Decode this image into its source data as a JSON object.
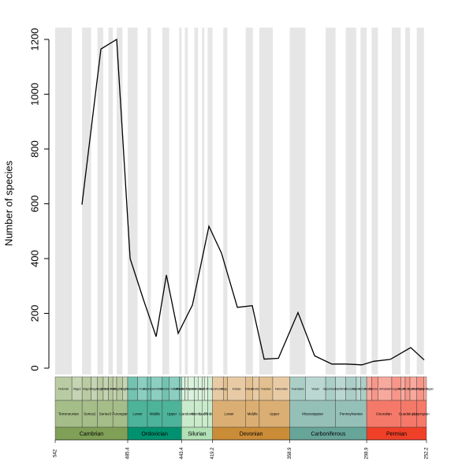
{
  "chart_data": {
    "type": "line",
    "y_label": "Number of species",
    "x": [
      521.1,
      506.3,
      494,
      483.5,
      473.1,
      463.2,
      455.2,
      446,
      434.9,
      422,
      412.2,
      399.8,
      388.2,
      378.9,
      367.8,
      352.5,
      339.5,
      326,
      314.3,
      302.6,
      293.4,
      280.5,
      264.5,
      254
    ],
    "values": [
      597,
      1165,
      1200,
      400,
      250,
      115,
      340,
      127,
      230,
      518,
      420,
      222,
      228,
      33,
      36,
      203,
      45,
      15,
      15,
      12,
      25,
      32,
      75,
      30
    ],
    "color": "#000000",
    "xlim": [
      542,
      252.2
    ],
    "xticks": [
      542,
      485.4,
      443.4,
      419.2,
      358.9,
      298.9,
      252.2
    ],
    "ylim": [
      0,
      1200
    ],
    "yticks": [
      0,
      200,
      400,
      600,
      800,
      1000,
      1200
    ],
    "band_color": "#e6e6e6",
    "timescale": {
      "systems": [
        {
          "name": "Cambrian",
          "start": 542,
          "end": 485.4,
          "color": "#7fa056"
        },
        {
          "name": "Ordovician",
          "start": 485.4,
          "end": 443.4,
          "color": "#009270"
        },
        {
          "name": "Silurian",
          "start": 443.4,
          "end": 419.2,
          "color": "#b3e1b6"
        },
        {
          "name": "Devonian",
          "start": 419.2,
          "end": 358.9,
          "color": "#cb8c37"
        },
        {
          "name": "Carboniferous",
          "start": 358.9,
          "end": 298.9,
          "color": "#67a599"
        },
        {
          "name": "Permian",
          "start": 298.9,
          "end": 252.2,
          "color": "#f04028"
        }
      ],
      "series": [
        {
          "name": "Terreneuvian",
          "start": 542,
          "end": 521
        },
        {
          "name": "Series2",
          "start": 521,
          "end": 509
        },
        {
          "name": "Series3",
          "start": 509,
          "end": 497
        },
        {
          "name": "Furongian",
          "start": 497,
          "end": 485.4
        },
        {
          "name": "Lower",
          "start": 485.4,
          "end": 470
        },
        {
          "name": "Middle",
          "start": 470,
          "end": 458.4
        },
        {
          "name": "Upper",
          "start": 458.4,
          "end": 443.4
        },
        {
          "name": "Llandovery",
          "start": 443.4,
          "end": 433.4
        },
        {
          "name": "Wenlock",
          "start": 433.4,
          "end": 427.4
        },
        {
          "name": "Ludlow",
          "start": 427.4,
          "end": 423
        },
        {
          "name": "Pridoli",
          "start": 423,
          "end": 419.2
        },
        {
          "name": "Lower",
          "start": 419.2,
          "end": 393.3
        },
        {
          "name": "Middle",
          "start": 393.3,
          "end": 382.7
        },
        {
          "name": "Upper",
          "start": 382.7,
          "end": 358.9
        },
        {
          "name": "Mississippian",
          "start": 358.9,
          "end": 323.2
        },
        {
          "name": "Pennsylvanian",
          "start": 323.2,
          "end": 298.9
        },
        {
          "name": "Cisuralian",
          "start": 298.9,
          "end": 272.3
        },
        {
          "name": "Guadalupian",
          "start": 272.3,
          "end": 259.8
        },
        {
          "name": "Lopingian",
          "start": 259.8,
          "end": 252.2
        }
      ],
      "stages": [
        {
          "name": "Fortunian",
          "start": 542,
          "end": 529
        },
        {
          "name": "Stage2",
          "start": 529,
          "end": 521
        },
        {
          "name": "Stage3",
          "start": 521,
          "end": 514
        },
        {
          "name": "Stage4",
          "start": 514,
          "end": 509
        },
        {
          "name": "Stage5",
          "start": 509,
          "end": 504.5
        },
        {
          "name": "Drumian",
          "start": 504.5,
          "end": 500.5
        },
        {
          "name": "Guzhangian",
          "start": 500.5,
          "end": 497
        },
        {
          "name": "Paibian",
          "start": 497,
          "end": 494
        },
        {
          "name": "Jiangshanian",
          "start": 494,
          "end": 489.5
        },
        {
          "name": "Stage10",
          "start": 489.5,
          "end": 485.4
        },
        {
          "name": "Tremadocian",
          "start": 485.4,
          "end": 477.7
        },
        {
          "name": "Floian",
          "start": 477.7,
          "end": 470
        },
        {
          "name": "Dapingian",
          "start": 470,
          "end": 467.3
        },
        {
          "name": "Darriwilian",
          "start": 467.3,
          "end": 458.4
        },
        {
          "name": "Sandbian",
          "start": 458.4,
          "end": 453
        },
        {
          "name": "Katian",
          "start": 453,
          "end": 445.2
        },
        {
          "name": "Hirnantian",
          "start": 445.2,
          "end": 443.4
        },
        {
          "name": "Rhuddanian",
          "start": 443.4,
          "end": 440.8
        },
        {
          "name": "Aeronian",
          "start": 440.8,
          "end": 438.5
        },
        {
          "name": "Telychian",
          "start": 438.5,
          "end": 433.4
        },
        {
          "name": "Sheinwoodian",
          "start": 433.4,
          "end": 430.5
        },
        {
          "name": "Homerian",
          "start": 430.5,
          "end": 427.4
        },
        {
          "name": "Gorstian",
          "start": 427.4,
          "end": 425.6
        },
        {
          "name": "Ludfordian",
          "start": 425.6,
          "end": 423
        },
        {
          "name": "Pridoli",
          "start": 423,
          "end": 419.2
        },
        {
          "name": "Lochkovian",
          "start": 419.2,
          "end": 410.8
        },
        {
          "name": "Pragian",
          "start": 410.8,
          "end": 407.6
        },
        {
          "name": "Emsian",
          "start": 407.6,
          "end": 393.3
        },
        {
          "name": "Eifelian",
          "start": 393.3,
          "end": 387.7
        },
        {
          "name": "Givetian",
          "start": 387.7,
          "end": 382.7
        },
        {
          "name": "Frasnian",
          "start": 382.7,
          "end": 372.2
        },
        {
          "name": "Famennian",
          "start": 372.2,
          "end": 358.9
        },
        {
          "name": "Tournaisian",
          "start": 358.9,
          "end": 346.7
        },
        {
          "name": "Visean",
          "start": 346.7,
          "end": 330.9
        },
        {
          "name": "Serpukhovian",
          "start": 330.9,
          "end": 323.2
        },
        {
          "name": "Bashkirian",
          "start": 323.2,
          "end": 315.2
        },
        {
          "name": "Moscovian",
          "start": 315.2,
          "end": 307
        },
        {
          "name": "Kasimovian",
          "start": 307,
          "end": 303.7
        },
        {
          "name": "Gzhelian",
          "start": 303.7,
          "end": 298.9
        },
        {
          "name": "Asselian",
          "start": 298.9,
          "end": 295
        },
        {
          "name": "Sakmarian",
          "start": 295,
          "end": 290.1
        },
        {
          "name": "Artinskian",
          "start": 290.1,
          "end": 279.3
        },
        {
          "name": "Kungurian",
          "start": 279.3,
          "end": 272.3
        },
        {
          "name": "Roadian",
          "start": 272.3,
          "end": 268.8
        },
        {
          "name": "Wordian",
          "start": 268.8,
          "end": 265.1
        },
        {
          "name": "Capitanian",
          "start": 265.1,
          "end": 259.8
        },
        {
          "name": "Wuchiapingian",
          "start": 259.8,
          "end": 254.2
        },
        {
          "name": "Changhsingian",
          "start": 254.2,
          "end": 252.2
        }
      ]
    }
  }
}
